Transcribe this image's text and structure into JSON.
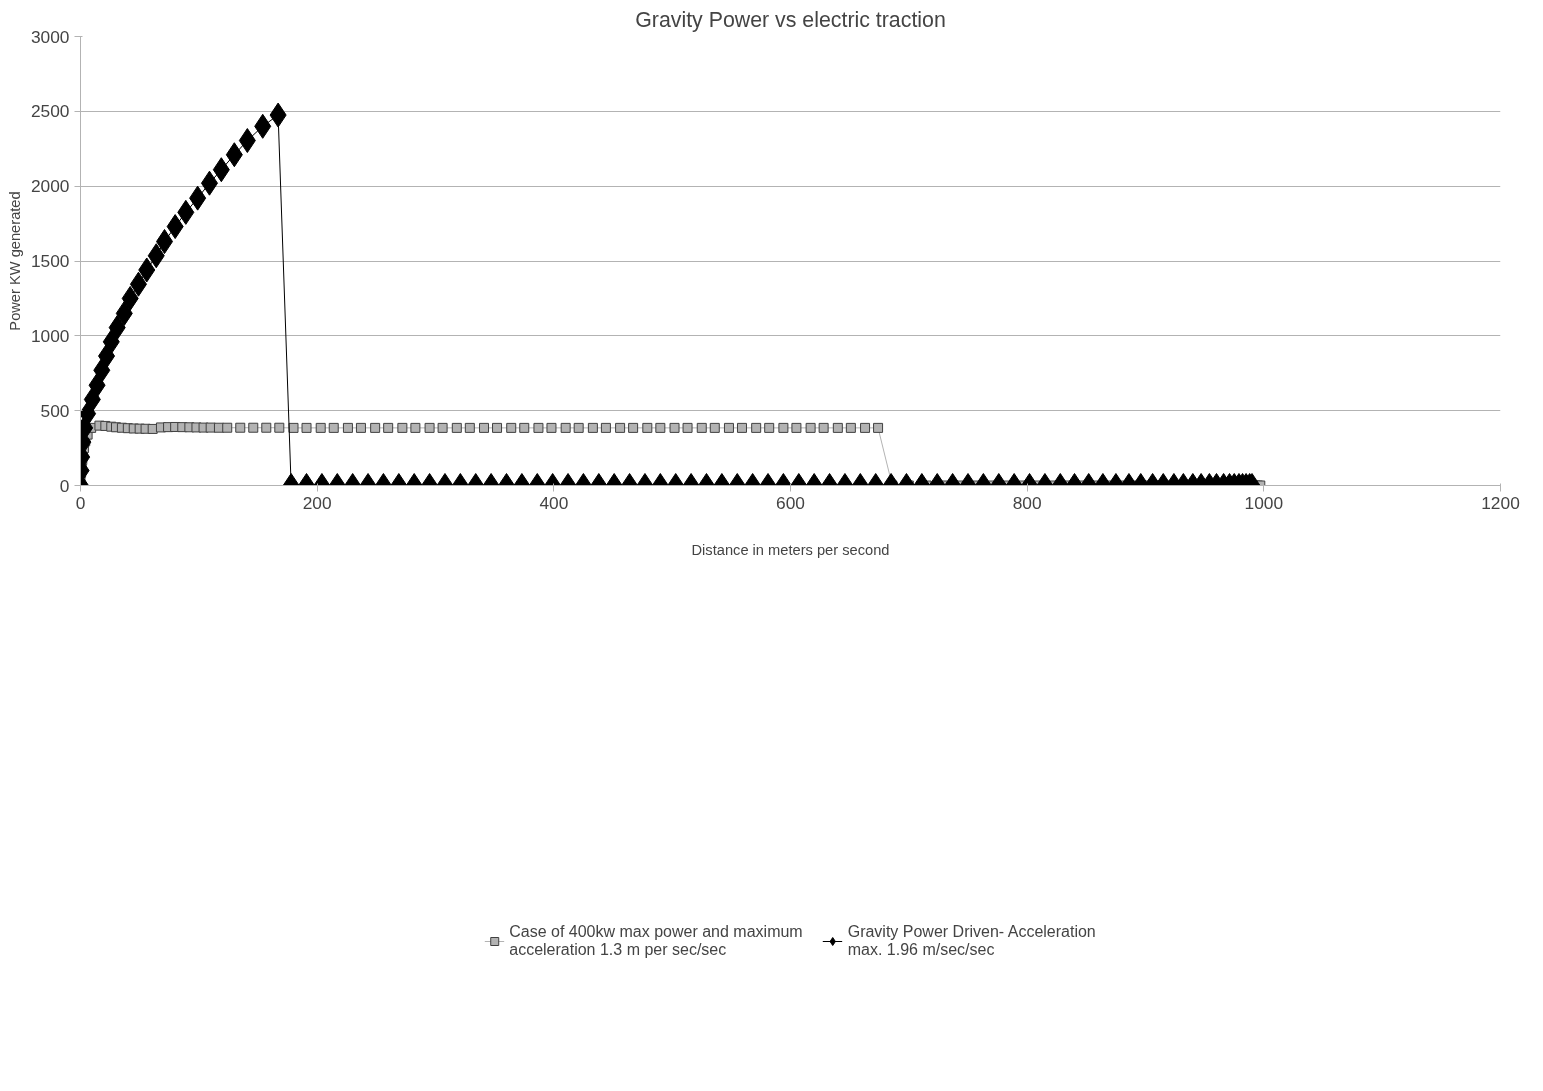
{
  "chart_data": {
    "type": "line",
    "title": "Gravity Power vs electric traction",
    "xlabel": "Distance in meters per second",
    "ylabel": "Power KW generated",
    "xlim": [
      0,
      1200
    ],
    "ylim": [
      0,
      3000
    ],
    "xticks": [
      0,
      200,
      400,
      600,
      800,
      1000,
      1200
    ],
    "yticks": [
      0,
      500,
      1000,
      1500,
      2000,
      2500,
      3000
    ],
    "grid": "y",
    "legend": "bottom",
    "series": [
      {
        "name": "Case of 400kw max power and maximum acceleration 1.3 m per sec/sec",
        "color": "#b3b3b3",
        "marker": "square",
        "x": [
          0,
          0.5,
          1,
          1.5,
          2,
          3,
          4,
          6,
          9,
          16,
          21,
          26,
          30,
          35,
          40,
          45,
          50,
          55,
          61,
          68,
          74,
          80,
          86,
          92,
          98,
          104,
          110,
          117,
          124,
          135,
          146,
          157,
          168,
          180,
          191,
          203,
          214,
          226,
          237,
          249,
          260,
          272,
          283,
          295,
          306,
          318,
          329,
          341,
          352,
          364,
          375,
          387,
          398,
          410,
          421,
          433,
          444,
          456,
          467,
          479,
          490,
          502,
          513,
          525,
          536,
          548,
          559,
          571,
          582,
          594,
          605,
          617,
          628,
          640,
          651,
          663,
          674,
          686,
          700,
          715,
          729,
          743,
          757,
          771,
          784,
          797,
          810,
          823,
          835,
          847,
          859,
          870,
          881,
          891,
          901,
          911,
          920,
          929,
          937,
          945,
          952,
          959,
          965,
          970,
          975,
          979,
          983,
          986,
          989,
          991,
          993,
          995,
          997
        ],
        "values": [
          40,
          85,
          125,
          170,
          205,
          250,
          295,
          340,
          385,
          400,
          398,
          393,
          389,
          386,
          383,
          381,
          380,
          379,
          378,
          388,
          390,
          391,
          390,
          389,
          388,
          387,
          387,
          386,
          386,
          386,
          386,
          386,
          386,
          385,
          385,
          385,
          385,
          385,
          385,
          385,
          385,
          385,
          385,
          385,
          385,
          385,
          385,
          385,
          385,
          385,
          385,
          385,
          385,
          385,
          385,
          385,
          385,
          385,
          385,
          385,
          385,
          385,
          385,
          385,
          385,
          385,
          385,
          385,
          385,
          385,
          385,
          385,
          385,
          385,
          385,
          385,
          385,
          0,
          0,
          0,
          0,
          0,
          0,
          0,
          0,
          0,
          0,
          0,
          0,
          0,
          0,
          0,
          0,
          0,
          0,
          0,
          0,
          0,
          0,
          0,
          0,
          0,
          0,
          0,
          0,
          0,
          0,
          0,
          0,
          0,
          0,
          0,
          0
        ]
      },
      {
        "name": "Gravity Power Driven- Acceleration max. 1.96 m/sec/sec",
        "color": "#000000",
        "marker": "diamond",
        "x": [
          0,
          0.5,
          1,
          2,
          3.5,
          6,
          10,
          14,
          18,
          22,
          26,
          31,
          37,
          42,
          49,
          56,
          64,
          71,
          80,
          89,
          99,
          109,
          119,
          130,
          141,
          154,
          167,
          178,
          191,
          204,
          217,
          230,
          243,
          256,
          269,
          282,
          295,
          308,
          321,
          334,
          347,
          360,
          373,
          386,
          399,
          412,
          425,
          438,
          451,
          464,
          477,
          490,
          503,
          516,
          529,
          542,
          555,
          568,
          581,
          594,
          607,
          620,
          633,
          646,
          659,
          672,
          685,
          698,
          711,
          724,
          737,
          750,
          763,
          776,
          789,
          802,
          815,
          828,
          840,
          852,
          864,
          875,
          886,
          896,
          906,
          915,
          924,
          932,
          940,
          947,
          954,
          960,
          966,
          971,
          975,
          979,
          982,
          985,
          988,
          990
        ],
        "values": [
          0,
          100,
          190,
          290,
          385,
          480,
          575,
          670,
          770,
          865,
          960,
          1055,
          1150,
          1250,
          1345,
          1440,
          1535,
          1630,
          1730,
          1825,
          1920,
          2020,
          2110,
          2210,
          2305,
          2400,
          2475,
          0,
          0,
          0,
          0,
          0,
          0,
          0,
          0,
          0,
          0,
          0,
          0,
          0,
          0,
          0,
          0,
          0,
          0,
          0,
          0,
          0,
          0,
          0,
          0,
          0,
          0,
          0,
          0,
          0,
          0,
          0,
          0,
          0,
          0,
          0,
          0,
          0,
          0,
          0,
          0,
          0,
          0,
          0,
          0,
          0,
          0,
          0,
          0,
          0,
          0,
          0,
          0,
          0,
          0,
          0,
          0,
          0,
          0,
          0,
          0,
          0,
          0,
          0,
          0,
          0,
          0,
          0,
          0,
          0,
          0,
          0,
          0,
          0
        ]
      }
    ]
  }
}
